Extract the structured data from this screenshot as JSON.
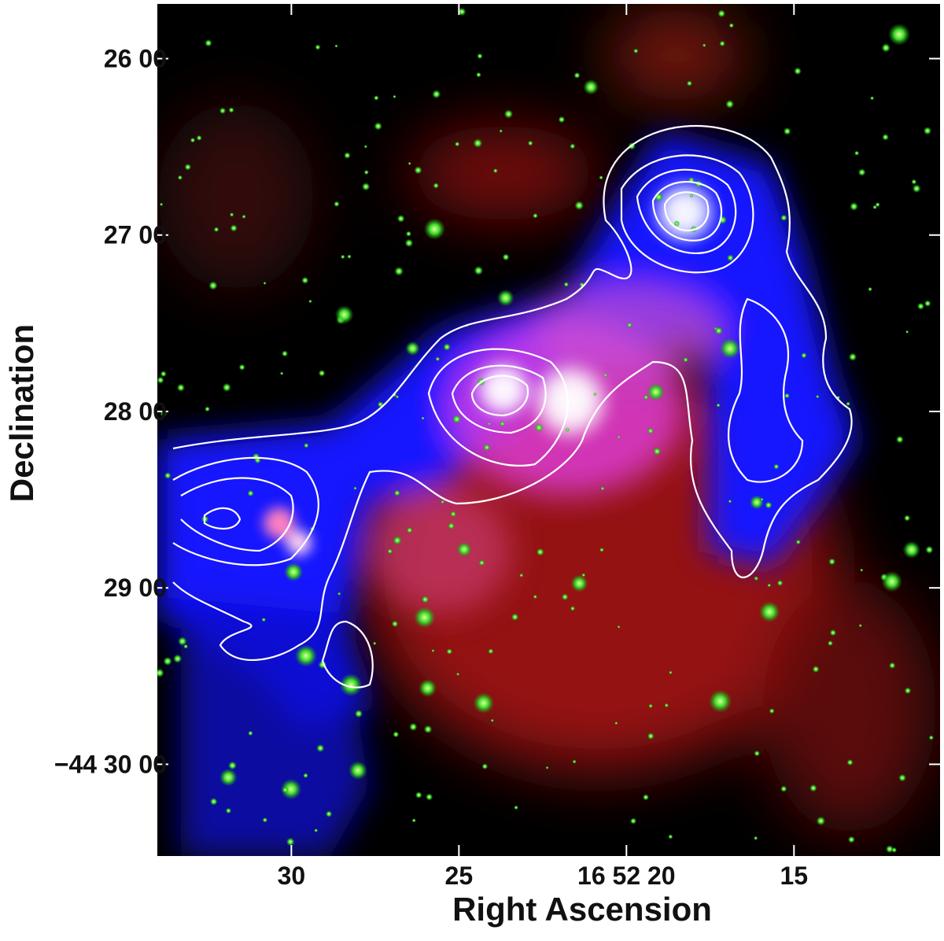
{
  "chart_data": {
    "type": "image",
    "x_label": "Right Ascension",
    "y_label": "Declination",
    "xlim": [
      34.0,
      10.64
    ],
    "xticks": [
      30,
      25,
      {
        "value": 20,
        "label": "16 52 20"
      },
      15
    ],
    "ylim": [
      25.69,
      30.52
    ],
    "yticks": [
      {
        "value": 26,
        "label": "26 00"
      },
      {
        "value": 27,
        "label": "27 00"
      },
      {
        "value": 28,
        "label": "28 00"
      },
      {
        "value": 29,
        "label": "29 00"
      },
      {
        "value": 30,
        "label": "−44 30 00"
      }
    ]
  }
}
